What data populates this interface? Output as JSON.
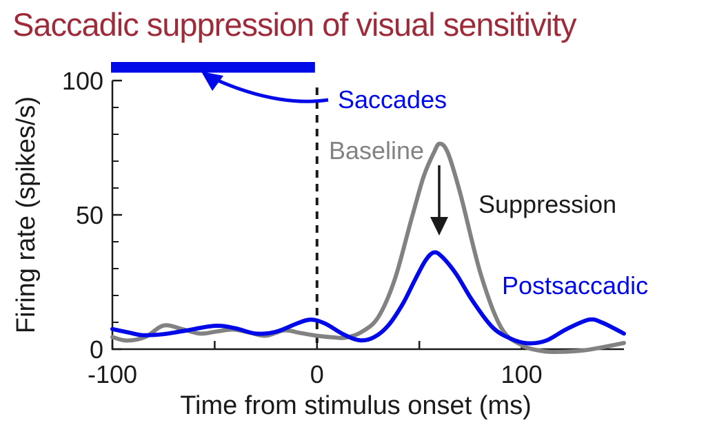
{
  "title": "Saccadic suppression of visual sensitivity",
  "colors": {
    "title_maroon": "#9e2b3a",
    "accent_blue": "#0009e8",
    "baseline_gray": "#828282",
    "ink_black": "#1a1a1a"
  },
  "annotations": {
    "saccades": "Saccades",
    "suppression": "Suppression"
  },
  "chart_data": {
    "type": "line",
    "title": "Saccadic suppression of visual sensitivity",
    "axes": {
      "x": {
        "label": "Time from stimulus onset (ms)",
        "range": [
          -100,
          150
        ],
        "major_ticks": [
          -100,
          -50,
          0,
          50,
          100
        ],
        "tick_labels": {
          "-100": "-100",
          "0": "0",
          "100": "100"
        }
      },
      "y": {
        "label": "Firing rate (spikes/s)",
        "range": [
          0,
          100
        ],
        "major_ticks": [
          0,
          50,
          100
        ],
        "tick_labels": {
          "0": "0",
          "50": "50",
          "100": "100"
        },
        "minor_tick_step": 10
      }
    },
    "grid": false,
    "legend": "inline-annotations",
    "event_line_ms": 0,
    "saccade_bar": {
      "from_ms": -100,
      "to_ms": -1,
      "color": "#0009e8",
      "meaning": "Saccades"
    },
    "suppression_arrow": {
      "at_ms": 60,
      "from_rate": 68,
      "to_rate": 43
    },
    "series": [
      {
        "name": "Baseline",
        "color": "#828282",
        "points": [
          [
            -100,
            4.5
          ],
          [
            -93,
            3.2
          ],
          [
            -84,
            4.5
          ],
          [
            -75,
            8.8
          ],
          [
            -66,
            7.5
          ],
          [
            -57,
            5.8
          ],
          [
            -49,
            6.6
          ],
          [
            -41,
            7.3
          ],
          [
            -33,
            6.2
          ],
          [
            -25,
            5.0
          ],
          [
            -16,
            7.0
          ],
          [
            -8,
            6.0
          ],
          [
            0,
            5.0
          ],
          [
            8,
            4.4
          ],
          [
            14,
            4.3
          ],
          [
            22,
            6.5
          ],
          [
            30,
            12
          ],
          [
            38,
            26
          ],
          [
            46,
            48
          ],
          [
            52,
            64
          ],
          [
            57,
            73
          ],
          [
            60,
            76.5
          ],
          [
            64,
            73
          ],
          [
            70,
            58
          ],
          [
            80,
            28
          ],
          [
            90,
            8
          ],
          [
            100,
            1.5
          ],
          [
            110,
            -0.7
          ],
          [
            118,
            -1.0
          ],
          [
            130,
            -0.5
          ],
          [
            140,
            0.8
          ],
          [
            150,
            2.3
          ]
        ]
      },
      {
        "name": "Postsaccadic",
        "color": "#0009e8",
        "points": [
          [
            -100,
            7.5
          ],
          [
            -92,
            6.2
          ],
          [
            -85,
            5.2
          ],
          [
            -75,
            5.6
          ],
          [
            -65,
            6.8
          ],
          [
            -50,
            8.7
          ],
          [
            -40,
            7.8
          ],
          [
            -30,
            5.8
          ],
          [
            -20,
            6.5
          ],
          [
            -10,
            9.5
          ],
          [
            -3,
            11
          ],
          [
            4,
            9.5
          ],
          [
            13,
            5.5
          ],
          [
            21,
            3.3
          ],
          [
            28,
            4.5
          ],
          [
            35,
            9
          ],
          [
            42,
            17
          ],
          [
            48,
            26
          ],
          [
            53,
            33
          ],
          [
            57,
            36
          ],
          [
            61,
            34.5
          ],
          [
            68,
            28
          ],
          [
            76,
            18
          ],
          [
            86,
            8
          ],
          [
            95,
            3.8
          ],
          [
            103,
            2.2
          ],
          [
            112,
            3.2
          ],
          [
            122,
            7.5
          ],
          [
            133,
            11
          ],
          [
            139,
            10
          ],
          [
            145,
            7.8
          ],
          [
            150,
            5.8
          ]
        ]
      }
    ]
  }
}
